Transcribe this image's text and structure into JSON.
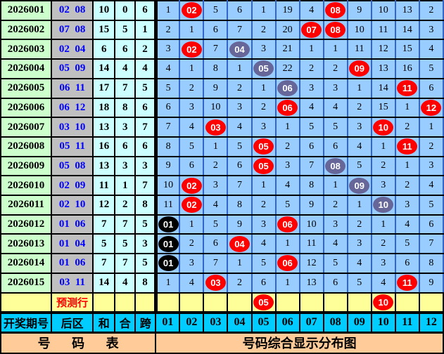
{
  "title": "号码综合显示分布图",
  "colors": {
    "period_bg": "#ccffcc",
    "backzone_bg": "#c0c0c0",
    "stats_bg": "#ccffff",
    "grid_bg": "#99ccff",
    "grid_line_blue": "#3366cc",
    "prediction_bg": "#ffff99",
    "header_bg": "#00ccff",
    "footer_bg": "#ffcc99",
    "ball_red": "#ff0000",
    "ball_slate": "#666699",
    "ball_black": "#000000",
    "backzone_text": "#0000ff",
    "prediction_text": "#ff0000"
  },
  "bottom_header": {
    "period": "开奖期号",
    "back": "后区",
    "sum": "和",
    "he": "合",
    "span": "跨",
    "ball_columns": [
      "01",
      "02",
      "03",
      "04",
      "05",
      "06",
      "07",
      "08",
      "09",
      "10",
      "11",
      "12"
    ]
  },
  "footer": {
    "left": "号 码 表",
    "right": "号码综合显示分布图"
  },
  "prediction_row": {
    "label": "预测行",
    "cells": [
      {
        "t": "",
        "b": ""
      },
      {
        "t": "",
        "b": ""
      },
      {
        "t": "",
        "b": ""
      },
      {
        "t": "",
        "b": ""
      },
      {
        "t": "05",
        "b": "r"
      },
      {
        "t": "",
        "b": ""
      },
      {
        "t": "",
        "b": ""
      },
      {
        "t": "",
        "b": ""
      },
      {
        "t": "",
        "b": ""
      },
      {
        "t": "10",
        "b": "r"
      },
      {
        "t": "",
        "b": ""
      },
      {
        "t": "",
        "b": ""
      }
    ]
  },
  "chart_data": {
    "type": "table",
    "title": "号码综合显示分布图",
    "columns": [
      "开奖期号",
      "后区",
      "和",
      "合",
      "跨",
      "01",
      "02",
      "03",
      "04",
      "05",
      "06",
      "07",
      "08",
      "09",
      "10",
      "11",
      "12"
    ],
    "legend": {
      "r": "drawn number (red ball)",
      "g": "drawn number (slate ball)",
      "k": "drawn number (black ball)",
      "plain": "miss count"
    },
    "rows": [
      {
        "period": "2026001",
        "back": "02  08",
        "sum": "10",
        "he": "0",
        "span": "6",
        "cells": [
          {
            "t": "1",
            "b": ""
          },
          {
            "t": "02",
            "b": "r"
          },
          {
            "t": "5",
            "b": ""
          },
          {
            "t": "6",
            "b": ""
          },
          {
            "t": "1",
            "b": ""
          },
          {
            "t": "19",
            "b": ""
          },
          {
            "t": "4",
            "b": ""
          },
          {
            "t": "08",
            "b": "r"
          },
          {
            "t": "9",
            "b": ""
          },
          {
            "t": "10",
            "b": ""
          },
          {
            "t": "13",
            "b": ""
          },
          {
            "t": "2",
            "b": ""
          }
        ]
      },
      {
        "period": "2026002",
        "back": "07  08",
        "sum": "15",
        "he": "5",
        "span": "1",
        "cells": [
          {
            "t": "2",
            "b": ""
          },
          {
            "t": "1",
            "b": ""
          },
          {
            "t": "6",
            "b": ""
          },
          {
            "t": "7",
            "b": ""
          },
          {
            "t": "2",
            "b": ""
          },
          {
            "t": "20",
            "b": ""
          },
          {
            "t": "07",
            "b": "r"
          },
          {
            "t": "08",
            "b": "r"
          },
          {
            "t": "10",
            "b": ""
          },
          {
            "t": "11",
            "b": ""
          },
          {
            "t": "14",
            "b": ""
          },
          {
            "t": "3",
            "b": ""
          }
        ]
      },
      {
        "period": "2026003",
        "back": "02  04",
        "sum": "6",
        "he": "6",
        "span": "2",
        "cells": [
          {
            "t": "3",
            "b": ""
          },
          {
            "t": "02",
            "b": "r"
          },
          {
            "t": "7",
            "b": ""
          },
          {
            "t": "04",
            "b": "g"
          },
          {
            "t": "3",
            "b": ""
          },
          {
            "t": "21",
            "b": ""
          },
          {
            "t": "1",
            "b": ""
          },
          {
            "t": "1",
            "b": ""
          },
          {
            "t": "11",
            "b": ""
          },
          {
            "t": "12",
            "b": ""
          },
          {
            "t": "15",
            "b": ""
          },
          {
            "t": "4",
            "b": ""
          }
        ]
      },
      {
        "period": "2026004",
        "back": "05  09",
        "sum": "14",
        "he": "4",
        "span": "4",
        "cells": [
          {
            "t": "4",
            "b": ""
          },
          {
            "t": "1",
            "b": ""
          },
          {
            "t": "8",
            "b": ""
          },
          {
            "t": "1",
            "b": ""
          },
          {
            "t": "05",
            "b": "g"
          },
          {
            "t": "22",
            "b": ""
          },
          {
            "t": "2",
            "b": ""
          },
          {
            "t": "2",
            "b": ""
          },
          {
            "t": "09",
            "b": "r"
          },
          {
            "t": "13",
            "b": ""
          },
          {
            "t": "16",
            "b": ""
          },
          {
            "t": "5",
            "b": ""
          }
        ]
      },
      {
        "period": "2026005",
        "back": "06  11",
        "sum": "17",
        "he": "7",
        "span": "5",
        "cells": [
          {
            "t": "5",
            "b": ""
          },
          {
            "t": "2",
            "b": ""
          },
          {
            "t": "9",
            "b": ""
          },
          {
            "t": "2",
            "b": ""
          },
          {
            "t": "1",
            "b": ""
          },
          {
            "t": "06",
            "b": "g"
          },
          {
            "t": "3",
            "b": ""
          },
          {
            "t": "3",
            "b": ""
          },
          {
            "t": "1",
            "b": ""
          },
          {
            "t": "14",
            "b": ""
          },
          {
            "t": "11",
            "b": "r"
          },
          {
            "t": "6",
            "b": ""
          }
        ]
      },
      {
        "period": "2026006",
        "back": "06  12",
        "sum": "18",
        "he": "8",
        "span": "6",
        "cells": [
          {
            "t": "6",
            "b": ""
          },
          {
            "t": "3",
            "b": ""
          },
          {
            "t": "10",
            "b": ""
          },
          {
            "t": "3",
            "b": ""
          },
          {
            "t": "2",
            "b": ""
          },
          {
            "t": "06",
            "b": "r"
          },
          {
            "t": "4",
            "b": ""
          },
          {
            "t": "4",
            "b": ""
          },
          {
            "t": "2",
            "b": ""
          },
          {
            "t": "15",
            "b": ""
          },
          {
            "t": "1",
            "b": ""
          },
          {
            "t": "12",
            "b": "r"
          }
        ]
      },
      {
        "period": "2026007",
        "back": "03  10",
        "sum": "13",
        "he": "3",
        "span": "7",
        "cells": [
          {
            "t": "7",
            "b": ""
          },
          {
            "t": "4",
            "b": ""
          },
          {
            "t": "03",
            "b": "r"
          },
          {
            "t": "4",
            "b": ""
          },
          {
            "t": "3",
            "b": ""
          },
          {
            "t": "1",
            "b": ""
          },
          {
            "t": "5",
            "b": ""
          },
          {
            "t": "5",
            "b": ""
          },
          {
            "t": "3",
            "b": ""
          },
          {
            "t": "10",
            "b": "r"
          },
          {
            "t": "2",
            "b": ""
          },
          {
            "t": "1",
            "b": ""
          }
        ]
      },
      {
        "period": "2026008",
        "back": "05  11",
        "sum": "16",
        "he": "6",
        "span": "6",
        "cells": [
          {
            "t": "8",
            "b": ""
          },
          {
            "t": "5",
            "b": ""
          },
          {
            "t": "1",
            "b": ""
          },
          {
            "t": "5",
            "b": ""
          },
          {
            "t": "05",
            "b": "r"
          },
          {
            "t": "2",
            "b": ""
          },
          {
            "t": "6",
            "b": ""
          },
          {
            "t": "6",
            "b": ""
          },
          {
            "t": "4",
            "b": ""
          },
          {
            "t": "1",
            "b": ""
          },
          {
            "t": "11",
            "b": "r"
          },
          {
            "t": "2",
            "b": ""
          }
        ]
      },
      {
        "period": "2026009",
        "back": "05  08",
        "sum": "13",
        "he": "3",
        "span": "3",
        "cells": [
          {
            "t": "9",
            "b": ""
          },
          {
            "t": "6",
            "b": ""
          },
          {
            "t": "2",
            "b": ""
          },
          {
            "t": "6",
            "b": ""
          },
          {
            "t": "05",
            "b": "r"
          },
          {
            "t": "3",
            "b": ""
          },
          {
            "t": "7",
            "b": ""
          },
          {
            "t": "08",
            "b": "g"
          },
          {
            "t": "5",
            "b": ""
          },
          {
            "t": "2",
            "b": ""
          },
          {
            "t": "1",
            "b": ""
          },
          {
            "t": "3",
            "b": ""
          }
        ]
      },
      {
        "period": "2026010",
        "back": "02  09",
        "sum": "11",
        "he": "1",
        "span": "7",
        "cells": [
          {
            "t": "10",
            "b": ""
          },
          {
            "t": "02",
            "b": "r"
          },
          {
            "t": "3",
            "b": ""
          },
          {
            "t": "7",
            "b": ""
          },
          {
            "t": "1",
            "b": ""
          },
          {
            "t": "4",
            "b": ""
          },
          {
            "t": "8",
            "b": ""
          },
          {
            "t": "1",
            "b": ""
          },
          {
            "t": "09",
            "b": "g"
          },
          {
            "t": "3",
            "b": ""
          },
          {
            "t": "2",
            "b": ""
          },
          {
            "t": "4",
            "b": ""
          }
        ]
      },
      {
        "period": "2026011",
        "back": "02  10",
        "sum": "12",
        "he": "2",
        "span": "8",
        "cells": [
          {
            "t": "11",
            "b": ""
          },
          {
            "t": "02",
            "b": "r"
          },
          {
            "t": "4",
            "b": ""
          },
          {
            "t": "8",
            "b": ""
          },
          {
            "t": "2",
            "b": ""
          },
          {
            "t": "5",
            "b": ""
          },
          {
            "t": "9",
            "b": ""
          },
          {
            "t": "2",
            "b": ""
          },
          {
            "t": "1",
            "b": ""
          },
          {
            "t": "10",
            "b": "g"
          },
          {
            "t": "3",
            "b": ""
          },
          {
            "t": "5",
            "b": ""
          }
        ]
      },
      {
        "period": "2026012",
        "back": "01  06",
        "sum": "7",
        "he": "7",
        "span": "5",
        "cells": [
          {
            "t": "01",
            "b": "k"
          },
          {
            "t": "1",
            "b": ""
          },
          {
            "t": "5",
            "b": ""
          },
          {
            "t": "9",
            "b": ""
          },
          {
            "t": "3",
            "b": ""
          },
          {
            "t": "06",
            "b": "r"
          },
          {
            "t": "10",
            "b": ""
          },
          {
            "t": "3",
            "b": ""
          },
          {
            "t": "2",
            "b": ""
          },
          {
            "t": "1",
            "b": ""
          },
          {
            "t": "4",
            "b": ""
          },
          {
            "t": "6",
            "b": ""
          }
        ]
      },
      {
        "period": "2026013",
        "back": "01  04",
        "sum": "5",
        "he": "5",
        "span": "3",
        "cells": [
          {
            "t": "01",
            "b": "k"
          },
          {
            "t": "2",
            "b": ""
          },
          {
            "t": "6",
            "b": ""
          },
          {
            "t": "04",
            "b": "r"
          },
          {
            "t": "4",
            "b": ""
          },
          {
            "t": "1",
            "b": ""
          },
          {
            "t": "11",
            "b": ""
          },
          {
            "t": "4",
            "b": ""
          },
          {
            "t": "3",
            "b": ""
          },
          {
            "t": "2",
            "b": ""
          },
          {
            "t": "5",
            "b": ""
          },
          {
            "t": "7",
            "b": ""
          }
        ]
      },
      {
        "period": "2026014",
        "back": "01  06",
        "sum": "7",
        "he": "7",
        "span": "5",
        "cells": [
          {
            "t": "01",
            "b": "k"
          },
          {
            "t": "3",
            "b": ""
          },
          {
            "t": "7",
            "b": ""
          },
          {
            "t": "1",
            "b": ""
          },
          {
            "t": "5",
            "b": ""
          },
          {
            "t": "06",
            "b": "r"
          },
          {
            "t": "12",
            "b": ""
          },
          {
            "t": "5",
            "b": ""
          },
          {
            "t": "4",
            "b": ""
          },
          {
            "t": "3",
            "b": ""
          },
          {
            "t": "6",
            "b": ""
          },
          {
            "t": "8",
            "b": ""
          }
        ]
      },
      {
        "period": "2026015",
        "back": "03  11",
        "sum": "14",
        "he": "4",
        "span": "8",
        "cells": [
          {
            "t": "1",
            "b": ""
          },
          {
            "t": "4",
            "b": ""
          },
          {
            "t": "03",
            "b": "r"
          },
          {
            "t": "2",
            "b": ""
          },
          {
            "t": "6",
            "b": ""
          },
          {
            "t": "1",
            "b": ""
          },
          {
            "t": "13",
            "b": ""
          },
          {
            "t": "6",
            "b": ""
          },
          {
            "t": "5",
            "b": ""
          },
          {
            "t": "4",
            "b": ""
          },
          {
            "t": "11",
            "b": "r"
          },
          {
            "t": "9",
            "b": ""
          }
        ]
      }
    ]
  }
}
